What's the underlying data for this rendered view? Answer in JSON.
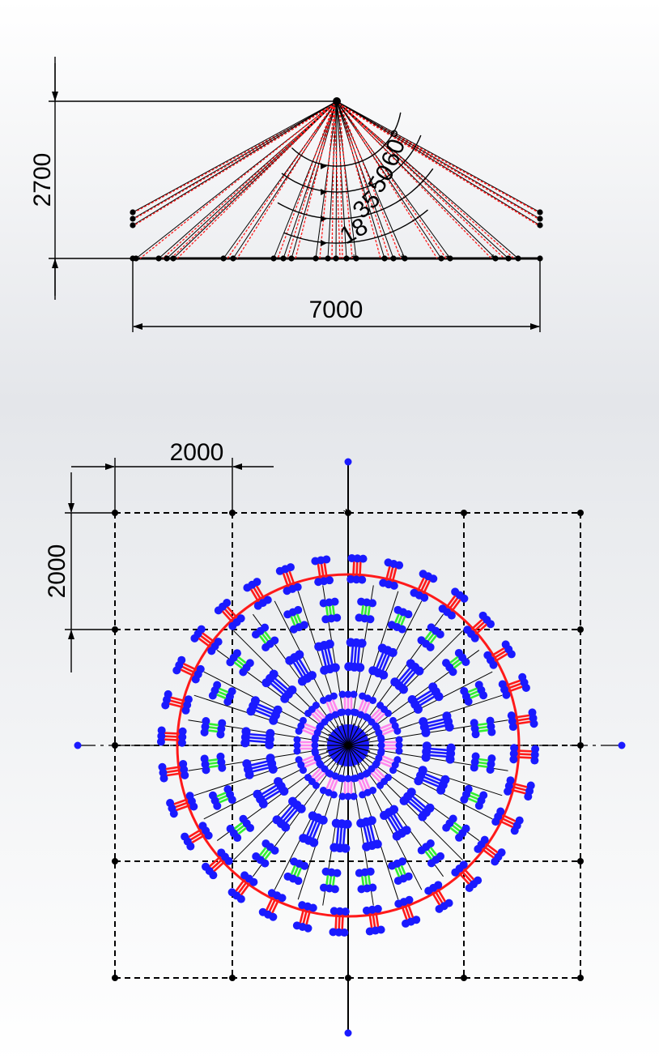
{
  "side_view": {
    "height_dim": "2700",
    "width_dim": "7000",
    "angle_labels": [
      "18",
      "35",
      "50",
      "60°"
    ]
  },
  "plan_view": {
    "grid_dim_horizontal": "2000",
    "grid_dim_vertical": "2000"
  },
  "colors": {
    "line": "#000000",
    "red_cable": "#ff1a1a",
    "node_blue": "#1a1aff",
    "green_link": "#33ee33",
    "pink_link": "#ff88ee"
  }
}
